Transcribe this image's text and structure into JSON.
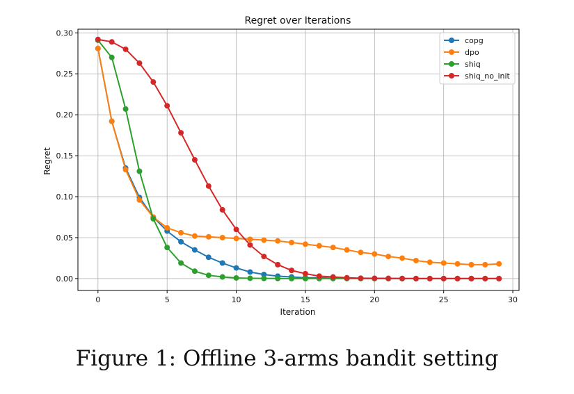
{
  "chart_data": {
    "type": "line",
    "title": "Regret over Iterations",
    "xlabel": "Iteration",
    "ylabel": "Regret",
    "xlim": [
      -1.45,
      30.45
    ],
    "ylim": [
      -0.0145,
      0.3045
    ],
    "xticks": [
      0,
      5,
      10,
      15,
      20,
      25,
      30
    ],
    "yticks": [
      0.0,
      0.05,
      0.1,
      0.15,
      0.2,
      0.25,
      0.3
    ],
    "xtick_labels": [
      "0",
      "5",
      "10",
      "15",
      "20",
      "25",
      "30"
    ],
    "ytick_labels": [
      "0.00",
      "0.05",
      "0.10",
      "0.15",
      "0.20",
      "0.25",
      "0.30"
    ],
    "grid": true,
    "legend_position": "top-right",
    "x": [
      0,
      1,
      2,
      3,
      4,
      5,
      6,
      7,
      8,
      9,
      10,
      11,
      12,
      13,
      14,
      15,
      16,
      17,
      18,
      19,
      20,
      21,
      22,
      23,
      24,
      25,
      26,
      27,
      28,
      29
    ],
    "series": [
      {
        "name": "copg",
        "color": "#1f77b4",
        "values": [
          0.281,
          0.192,
          0.135,
          0.099,
          0.075,
          0.058,
          0.045,
          0.035,
          0.026,
          0.019,
          0.013,
          0.008,
          0.005,
          0.003,
          0.002,
          0.001,
          0.001,
          0.0005,
          0.0003,
          0.0002,
          0.0001,
          0.0001,
          0,
          0,
          0,
          0,
          0,
          0,
          0,
          0
        ]
      },
      {
        "name": "dpo",
        "color": "#ff7f0e",
        "values": [
          0.281,
          0.192,
          0.133,
          0.096,
          0.075,
          0.062,
          0.056,
          0.052,
          0.051,
          0.05,
          0.049,
          0.048,
          0.047,
          0.046,
          0.044,
          0.042,
          0.04,
          0.038,
          0.035,
          0.032,
          0.03,
          0.027,
          0.025,
          0.022,
          0.02,
          0.019,
          0.018,
          0.017,
          0.017,
          0.018
        ]
      },
      {
        "name": "shiq",
        "color": "#2ca02c",
        "values": [
          0.291,
          0.27,
          0.207,
          0.131,
          0.073,
          0.038,
          0.019,
          0.009,
          0.004,
          0.002,
          0.0008,
          0.0004,
          0.0002,
          0.0001,
          0,
          0,
          0,
          0,
          0,
          0,
          0,
          0,
          0,
          0,
          0,
          0,
          0,
          0,
          0,
          0
        ]
      },
      {
        "name": "shiq_no_init",
        "color": "#d62728",
        "values": [
          0.292,
          0.289,
          0.28,
          0.263,
          0.24,
          0.211,
          0.178,
          0.145,
          0.113,
          0.084,
          0.06,
          0.041,
          0.027,
          0.017,
          0.01,
          0.006,
          0.003,
          0.002,
          0.001,
          0.0005,
          0.0003,
          0.0002,
          0.0001,
          0,
          0,
          0,
          0,
          0,
          0,
          0
        ]
      }
    ]
  },
  "caption": "Figure 1: Offline 3-arms bandit setting"
}
